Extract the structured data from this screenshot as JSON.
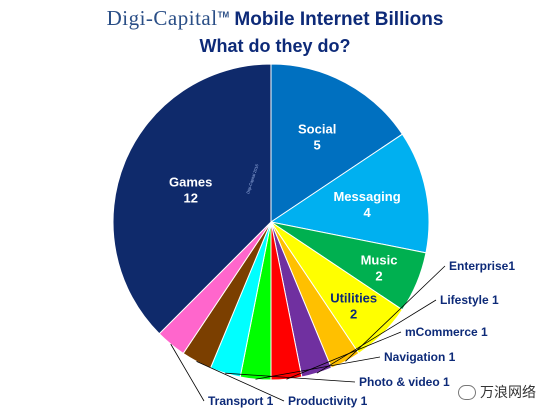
{
  "header": {
    "brand": "Digi-Capital",
    "trademark": "TM",
    "title_rest": "Mobile Internet Billions",
    "subtitle": "What do they do?"
  },
  "watermark": {
    "text": "万浪网络",
    "icon": "wechat-icon"
  },
  "chart_data": {
    "type": "pie",
    "title": "Digi-Capital Mobile Internet Billions",
    "subtitle": "What do they do?",
    "unit": "Billions",
    "slices": [
      {
        "name": "Social",
        "value": 5,
        "color": "#0070c0",
        "label": "Social",
        "value_label": "5"
      },
      {
        "name": "Messaging",
        "value": 4,
        "color": "#00b0f0",
        "label": "Messaging",
        "value_label": "4"
      },
      {
        "name": "Music",
        "value": 2,
        "color": "#00b050",
        "label": "Music",
        "value_label": "2"
      },
      {
        "name": "Utilities",
        "value": 2,
        "color": "#ffff00",
        "label": "Utilities",
        "value_label": "2"
      },
      {
        "name": "Enterprise",
        "value": 1,
        "color": "#ffc000",
        "label": "Enterprise1"
      },
      {
        "name": "Lifestyle",
        "value": 1,
        "color": "#7030a0",
        "label": "Lifestyle 1"
      },
      {
        "name": "mCommerce",
        "value": 1,
        "color": "#ff0000",
        "label": "mCommerce 1"
      },
      {
        "name": "Navigation",
        "value": 1,
        "color": "#00ff00",
        "label": "Navigation 1"
      },
      {
        "name": "Photo & video",
        "value": 1,
        "color": "#00ffff",
        "label": "Photo & video 1"
      },
      {
        "name": "Productivity",
        "value": 1,
        "color": "#7b3f00",
        "label": "Productivity 1"
      },
      {
        "name": "Transport",
        "value": 1,
        "color": "#ff66cc",
        "label": "Transport 1"
      },
      {
        "name": "Games",
        "value": 12,
        "color": "#0f2a6b",
        "label": "Games",
        "value_label": "12"
      }
    ],
    "tiny_credit": "Digi-Capital 2016"
  }
}
